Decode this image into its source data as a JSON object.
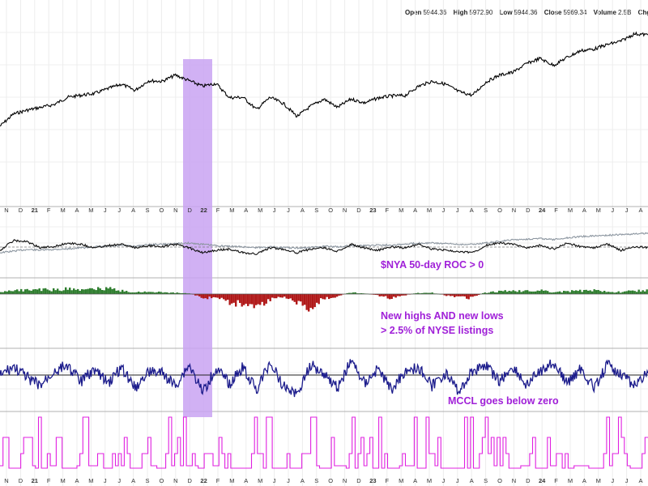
{
  "quote_bar": {
    "open_label": "Open",
    "open_value": "5944.36",
    "high_label": "High",
    "high_value": "5972.90",
    "low_label": "Low",
    "low_value": "5944.36",
    "close_label": "Close",
    "close_value": "5969.34",
    "volume_label": "Volume",
    "volume_value": "2.5B",
    "chg_label": "Chg"
  },
  "colors": {
    "highlight": "#c9a3f2",
    "price": "#000000",
    "roc_gray": "#8c96a0",
    "hl_positive": "#2e7d2e",
    "hl_negative": "#b01818",
    "mccl": "#1c1c8c",
    "signal": "#e020e0",
    "annotation": "#a020d8"
  },
  "chart_data": [
    {
      "type": "line",
      "panel": "price",
      "x_axis_labels": [
        "N",
        "D",
        "21",
        "F",
        "M",
        "A",
        "M",
        "J",
        "J",
        "A",
        "S",
        "O",
        "N",
        "D",
        "22",
        "F",
        "M",
        "A",
        "M",
        "J",
        "J",
        "A",
        "S",
        "O",
        "N",
        "D",
        "23",
        "F",
        "M",
        "A",
        "M",
        "J",
        "J",
        "A",
        "S",
        "O",
        "N",
        "D",
        "24",
        "F",
        "M",
        "A",
        "M",
        "J",
        "J",
        "A"
      ],
      "highlight_period": [
        "Nov 2021",
        "Jan 2022"
      ],
      "series": [
        {
          "values": [
            3300,
            3650,
            3760,
            3840,
            3920,
            4130,
            4190,
            4240,
            4380,
            4510,
            4330,
            4610,
            4590,
            4770,
            4610,
            4450,
            4530,
            4120,
            4130,
            3780,
            4130,
            3950,
            3580,
            3870,
            4080,
            3840,
            4080,
            3970,
            4110,
            4170,
            4180,
            4450,
            4590,
            4510,
            4290,
            4190,
            4570,
            4770,
            4850,
            5100,
            5250,
            5050,
            5280,
            5470,
            5520,
            5650,
            5750,
            5960,
            5930
          ],
          "yrange": [
            3200,
            6000
          ]
        }
      ]
    },
    {
      "type": "line",
      "panel": "roc",
      "annotation": "$NYA 50-day ROC > 0",
      "series": [
        {
          "values": [
            0.2,
            0.25,
            0.3,
            0.28,
            0.3,
            0.32,
            0.35,
            0.38,
            0.4,
            0.42,
            0.4,
            0.45,
            0.46,
            0.48,
            0.5,
            0.46,
            0.42,
            0.4,
            0.38,
            0.36,
            0.38,
            0.36,
            0.34,
            0.36,
            0.4,
            0.38,
            0.42,
            0.42,
            0.44,
            0.44,
            0.46,
            0.5,
            0.5,
            0.48,
            0.46,
            0.46,
            0.5,
            0.55,
            0.6,
            0.62,
            0.64,
            0.6,
            0.66,
            0.7,
            0.72,
            0.74,
            0.76,
            0.78,
            0.8
          ],
          "yrange": [
            0,
            1
          ]
        },
        {
          "values": [
            0.2,
            0.6,
            0.55,
            0.3,
            0.35,
            0.5,
            0.45,
            0.3,
            0.4,
            0.45,
            0.3,
            0.4,
            0.35,
            0.45,
            0.3,
            0.1,
            0.2,
            0.25,
            0.1,
            0.05,
            0.3,
            0.25,
            0.1,
            0.25,
            0.3,
            0.15,
            0.45,
            0.3,
            0.2,
            0.35,
            0.3,
            0.45,
            0.25,
            0.2,
            0.15,
            0.1,
            0.4,
            0.5,
            0.45,
            0.3,
            0.4,
            0.25,
            0.5,
            0.35,
            0.3,
            0.45,
            0.2,
            0.35,
            0.3
          ],
          "yrange": [
            0,
            1
          ]
        }
      ]
    },
    {
      "type": "bar",
      "panel": "new_highs_lows",
      "annotation_lines": [
        "New highs AND new lows",
        "> 2.5% of NYSE listings"
      ],
      "series": [
        {
          "values": [
            0.3,
            0.55,
            0.6,
            0.7,
            0.65,
            0.8,
            0.6,
            0.75,
            0.9,
            0.5,
            0.3,
            0.35,
            0.25,
            0.2,
            0.1,
            -0.3,
            -0.2,
            -0.6,
            -0.7,
            -0.9,
            -0.4,
            -0.2,
            -0.6,
            -0.95,
            -0.3,
            -0.2,
            0.25,
            0.1,
            -0.1,
            -0.3,
            -0.1,
            0.15,
            0.2,
            -0.1,
            -0.2,
            -0.3,
            0.2,
            0.4,
            0.5,
            0.45,
            0.6,
            0.3,
            0.4,
            0.5,
            0.55,
            0.4,
            0.3,
            0.5,
            0.55
          ],
          "yrange": [
            -1,
            1
          ]
        }
      ]
    },
    {
      "type": "line",
      "panel": "mccl",
      "annotation": "MCCL goes below zero",
      "series": [
        {
          "values": [
            0.1,
            0.5,
            0.0,
            -0.4,
            0.3,
            0.6,
            -0.2,
            0.4,
            -0.3,
            0.5,
            -0.5,
            0.3,
            0.2,
            -0.4,
            0.6,
            -0.7,
            0.4,
            -0.3,
            0.5,
            -0.6,
            0.7,
            -0.4,
            -0.8,
            0.6,
            0.2,
            -0.5,
            0.8,
            -0.3,
            0.4,
            -0.6,
            0.3,
            0.5,
            -0.4,
            0.2,
            -0.7,
            0.3,
            0.6,
            -0.2,
            0.5,
            -0.4,
            0.3,
            0.7,
            -0.3,
            0.4,
            -0.5,
            0.6,
            0.2,
            -0.4,
            0.3
          ],
          "yrange": [
            -1,
            1
          ]
        }
      ]
    },
    {
      "type": "line",
      "panel": "signal",
      "series": [
        {
          "values": [
            1,
            0,
            1,
            0,
            1,
            0,
            1,
            1,
            0,
            1,
            0,
            1,
            0,
            1,
            1,
            0,
            1,
            0,
            0,
            1,
            0,
            0,
            0,
            1,
            0,
            1,
            0,
            1,
            0,
            0,
            1,
            0,
            1,
            0,
            0,
            0,
            1,
            1,
            0,
            1,
            0,
            1,
            0,
            1,
            0,
            1,
            1,
            0,
            1
          ],
          "yrange": [
            0,
            1
          ]
        }
      ]
    }
  ]
}
